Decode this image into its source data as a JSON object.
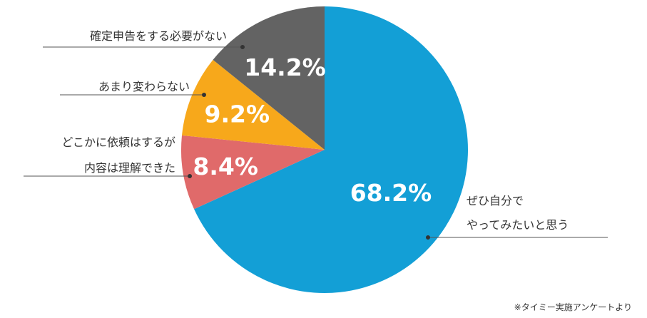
{
  "chart_data": {
    "type": "pie",
    "categories": [
      "ぜひ自分でやってみたいと思う",
      "どこかに依頼はするが内容は理解できた",
      "あまり変わらない",
      "確定申告をする必要がない"
    ],
    "values": [
      68.2,
      8.4,
      9.2,
      14.2
    ],
    "value_labels": [
      "68.2%",
      "8.4%",
      "9.2%",
      "14.2%"
    ],
    "label_lines": [
      [
        "ぜひ自分で",
        "やってみたいと思う"
      ],
      [
        "どこかに依頼はするが",
        "内容は理解できた"
      ],
      [
        "あまり変わらない"
      ],
      [
        "確定申告をする必要がない"
      ]
    ],
    "colors": [
      "#139fd6",
      "#e06a6a",
      "#f7a81b",
      "#636363"
    ],
    "start": "12 o'clock",
    "direction": "clockwise",
    "legend": "none",
    "note": "※タイミー実施アンケートより"
  }
}
